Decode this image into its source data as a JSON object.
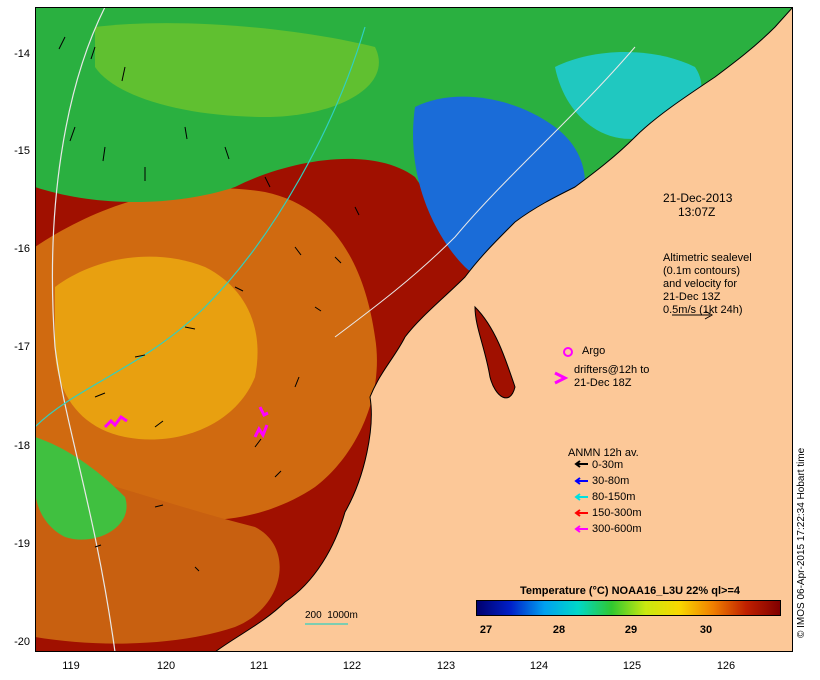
{
  "map": {
    "y_axis_labels": [
      "-14",
      "-15",
      "-16",
      "-17",
      "-18",
      "-19",
      "-20"
    ],
    "x_axis_labels": [
      "119",
      "120",
      "121",
      "122",
      "123",
      "124",
      "125",
      "126"
    ],
    "date_line": "21-Dec-2013",
    "time_line": "13:07Z",
    "altimetry_lines": [
      "Altimetric sealevel",
      "(0.1m contours)",
      "and velocity for",
      "21-Dec 13Z",
      "0.5m/s (1kt 24h)"
    ],
    "argo_label": "Argo",
    "drifters_lines": [
      "drifters@12h to",
      "21-Dec 18Z"
    ],
    "anmn_title": "ANMN 12h av.",
    "anmn_items": [
      {
        "label": "0-30m",
        "color": "#000000"
      },
      {
        "label": "30-80m",
        "color": "#0000ff"
      },
      {
        "label": "80-150m",
        "color": "#00e0e0"
      },
      {
        "label": "150-300m",
        "color": "#ff0000"
      },
      {
        "label": "300-600m",
        "color": "#ff00ff"
      }
    ],
    "depth_contours": "200  1000m",
    "colorbar_title": "Temperature (°C) NOAA16_L3U 22% ql>=4",
    "colorbar_ticks": [
      "27",
      "28",
      "29",
      "30"
    ],
    "credit": "© IMOS 06-Apr-2015 17:22:34 Hobart time",
    "colors": {
      "land": "#fcc898",
      "warm": "#a01000",
      "orange": "#e07810",
      "cool": "#22c040",
      "cold": "#1050e0"
    }
  }
}
